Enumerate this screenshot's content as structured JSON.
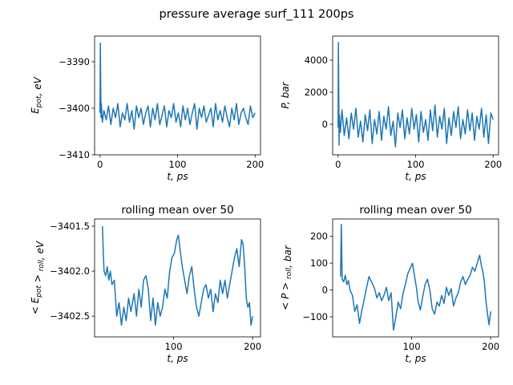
{
  "figure": {
    "suptitle": "pressure average surf_111 200ps"
  },
  "chart_data": [
    {
      "type": "line",
      "title": "",
      "xlabel": "t, ps",
      "ylabel": "E_pot, eV",
      "xlim": [
        -7,
        207
      ],
      "ylim": [
        -3410,
        -3384.5
      ],
      "xticks": [
        0,
        100,
        200
      ],
      "yticks": [
        -3410,
        -3400,
        -3390
      ],
      "ytick_labels": [
        "−3410",
        "−3400",
        "−3390"
      ],
      "series": [
        {
          "color": "#1f77b4",
          "x": [
            0.0,
            0.4,
            0.9,
            1.3,
            1.7,
            3,
            5,
            8,
            11,
            14,
            17,
            20,
            23,
            26,
            29,
            32,
            35,
            38,
            41,
            44,
            47,
            50,
            53,
            56,
            59,
            62,
            65,
            68,
            71,
            74,
            77,
            80,
            83,
            86,
            89,
            92,
            95,
            98,
            101,
            104,
            107,
            110,
            113,
            116,
            119,
            122,
            125,
            128,
            131,
            134,
            137,
            140,
            143,
            146,
            149,
            152,
            155,
            158,
            161,
            164,
            167,
            170,
            173,
            176,
            179,
            182,
            185,
            188,
            191,
            194,
            197,
            200
          ],
          "y": [
            -3401.0,
            -3386.0,
            -3395.0,
            -3402.0,
            -3399.0,
            -3403.0,
            -3400.5,
            -3402.5,
            -3399.5,
            -3403.5,
            -3400.0,
            -3402.0,
            -3399.0,
            -3404.0,
            -3401.0,
            -3402.5,
            -3399.0,
            -3403.0,
            -3400.5,
            -3404.5,
            -3399.5,
            -3402.0,
            -3400.0,
            -3403.5,
            -3401.0,
            -3399.5,
            -3404.0,
            -3400.0,
            -3402.5,
            -3399.0,
            -3403.5,
            -3401.5,
            -3399.5,
            -3404.0,
            -3400.5,
            -3402.0,
            -3399.0,
            -3403.0,
            -3401.0,
            -3404.0,
            -3399.5,
            -3402.5,
            -3400.0,
            -3403.5,
            -3401.0,
            -3399.0,
            -3404.5,
            -3400.0,
            -3402.0,
            -3399.5,
            -3403.0,
            -3401.5,
            -3400.0,
            -3404.0,
            -3399.0,
            -3402.5,
            -3400.5,
            -3403.0,
            -3399.5,
            -3402.0,
            -3404.0,
            -3400.0,
            -3402.5,
            -3399.0,
            -3403.5,
            -3401.0,
            -3400.0,
            -3402.0,
            -3403.5,
            -3399.5,
            -3402.0,
            -3401.0
          ]
        }
      ]
    },
    {
      "type": "line",
      "title": "",
      "xlabel": "t, ps",
      "ylabel": "P, bar",
      "xlim": [
        -7,
        207
      ],
      "ylim": [
        -1900,
        5500
      ],
      "xticks": [
        0,
        100,
        200
      ],
      "yticks": [
        0,
        2000,
        4000
      ],
      "ytick_labels": [
        "0",
        "2000",
        "4000"
      ],
      "series": [
        {
          "color": "#1f77b4",
          "x": [
            0.0,
            0.4,
            0.9,
            1.3,
            1.7,
            3,
            5,
            8,
            11,
            14,
            17,
            20,
            23,
            26,
            29,
            32,
            35,
            38,
            41,
            44,
            47,
            50,
            53,
            56,
            59,
            62,
            65,
            68,
            71,
            74,
            77,
            80,
            83,
            86,
            89,
            92,
            95,
            98,
            101,
            104,
            107,
            110,
            113,
            116,
            119,
            122,
            125,
            128,
            131,
            134,
            137,
            140,
            143,
            146,
            149,
            152,
            155,
            158,
            161,
            164,
            167,
            170,
            173,
            176,
            179,
            182,
            185,
            188,
            191,
            194,
            197,
            200
          ],
          "y": [
            -200,
            5100,
            2000,
            -1300,
            600,
            -500,
            900,
            -700,
            400,
            -900,
            700,
            -300,
            1000,
            -800,
            200,
            -1100,
            600,
            -400,
            900,
            -1200,
            300,
            -600,
            800,
            -1000,
            500,
            -300,
            1100,
            -700,
            200,
            -1400,
            700,
            -200,
            900,
            -900,
            400,
            -600,
            1000,
            -300,
            600,
            -1100,
            800,
            -500,
            300,
            -1000,
            900,
            -400,
            1200,
            -800,
            500,
            -300,
            1000,
            -1200,
            400,
            -700,
            800,
            -200,
            1100,
            -900,
            300,
            -600,
            900,
            -400,
            700,
            -1000,
            500,
            -300,
            1000,
            -800,
            600,
            -1200,
            700,
            300
          ]
        }
      ]
    },
    {
      "type": "line",
      "title": "rolling mean over 50",
      "xlabel": "t, ps",
      "ylabel": "< E_pot >_roll, eV",
      "xlim": [
        0,
        210
      ],
      "ylim": [
        -3402.73,
        -3401.42
      ],
      "xticks": [
        100,
        200
      ],
      "yticks": [
        -3402.5,
        -3402.0,
        -3401.5
      ],
      "ytick_labels": [
        "−3402.5",
        "−3402.0",
        "−3401.5"
      ],
      "series": [
        {
          "color": "#1f77b4",
          "x": [
            10,
            11,
            12,
            14,
            16,
            18,
            20,
            22,
            25,
            28,
            31,
            34,
            37,
            40,
            43,
            46,
            50,
            53,
            56,
            59,
            62,
            65,
            68,
            71,
            74,
            77,
            80,
            83,
            86,
            89,
            92,
            95,
            98,
            101,
            104,
            106,
            108,
            111,
            114,
            117,
            120,
            123,
            126,
            129,
            132,
            135,
            138,
            141,
            144,
            147,
            150,
            153,
            156,
            159,
            162,
            165,
            168,
            171,
            174,
            177,
            180,
            183,
            186,
            188,
            190,
            192,
            194,
            196,
            198,
            200
          ],
          "y": [
            -3401.5,
            -3401.8,
            -3402.0,
            -3402.05,
            -3401.95,
            -3402.1,
            -3402.0,
            -3402.15,
            -3402.1,
            -3402.5,
            -3402.35,
            -3402.6,
            -3402.4,
            -3402.55,
            -3402.3,
            -3402.45,
            -3402.25,
            -3402.5,
            -3402.2,
            -3402.4,
            -3402.1,
            -3402.05,
            -3402.2,
            -3402.55,
            -3402.3,
            -3402.6,
            -3402.35,
            -3402.5,
            -3402.4,
            -3402.2,
            -3402.3,
            -3402.0,
            -3401.85,
            -3401.8,
            -3401.65,
            -3401.6,
            -3401.75,
            -3401.95,
            -3402.1,
            -3402.25,
            -3402.05,
            -3401.95,
            -3402.2,
            -3402.4,
            -3402.5,
            -3402.35,
            -3402.2,
            -3402.15,
            -3402.3,
            -3402.2,
            -3402.45,
            -3402.25,
            -3402.35,
            -3402.1,
            -3402.25,
            -3402.1,
            -3402.3,
            -3402.15,
            -3402.0,
            -3401.85,
            -3401.75,
            -3401.95,
            -3401.65,
            -3401.7,
            -3401.95,
            -3402.3,
            -3402.4,
            -3402.35,
            -3402.6,
            -3402.5
          ]
        }
      ]
    },
    {
      "type": "line",
      "title": "rolling mean over 50",
      "xlabel": "t, ps",
      "ylabel": "< P >_roll, bar",
      "xlim": [
        0,
        210
      ],
      "ylim": [
        -175,
        265
      ],
      "xticks": [
        100,
        200
      ],
      "yticks": [
        -100,
        0,
        100,
        200
      ],
      "ytick_labels": [
        "−100",
        "0",
        "100",
        "200"
      ],
      "series": [
        {
          "color": "#1f77b4",
          "x": [
            10,
            11,
            12,
            14,
            16,
            18,
            20,
            22,
            25,
            28,
            31,
            34,
            37,
            40,
            43,
            46,
            50,
            53,
            56,
            59,
            62,
            65,
            68,
            71,
            74,
            77,
            80,
            83,
            86,
            89,
            92,
            95,
            98,
            101,
            104,
            106,
            108,
            111,
            114,
            117,
            120,
            123,
            126,
            129,
            132,
            135,
            138,
            141,
            144,
            147,
            150,
            153,
            156,
            159,
            162,
            165,
            168,
            171,
            174,
            177,
            180,
            183,
            186,
            188,
            190,
            192,
            194,
            196,
            198,
            200
          ],
          "y": [
            50,
            245,
            40,
            30,
            55,
            20,
            35,
            0,
            -20,
            -80,
            -55,
            -125,
            -75,
            -35,
            10,
            50,
            25,
            5,
            -30,
            -10,
            -40,
            -20,
            10,
            -40,
            -10,
            -150,
            -100,
            -45,
            -70,
            -15,
            20,
            60,
            80,
            100,
            45,
            10,
            -40,
            -75,
            -25,
            20,
            40,
            0,
            -70,
            -90,
            -45,
            -60,
            -20,
            -50,
            10,
            -20,
            5,
            -60,
            -30,
            -10,
            30,
            50,
            20,
            40,
            55,
            85,
            70,
            100,
            130,
            95,
            70,
            30,
            -40,
            -90,
            -130,
            -80
          ]
        }
      ]
    }
  ]
}
